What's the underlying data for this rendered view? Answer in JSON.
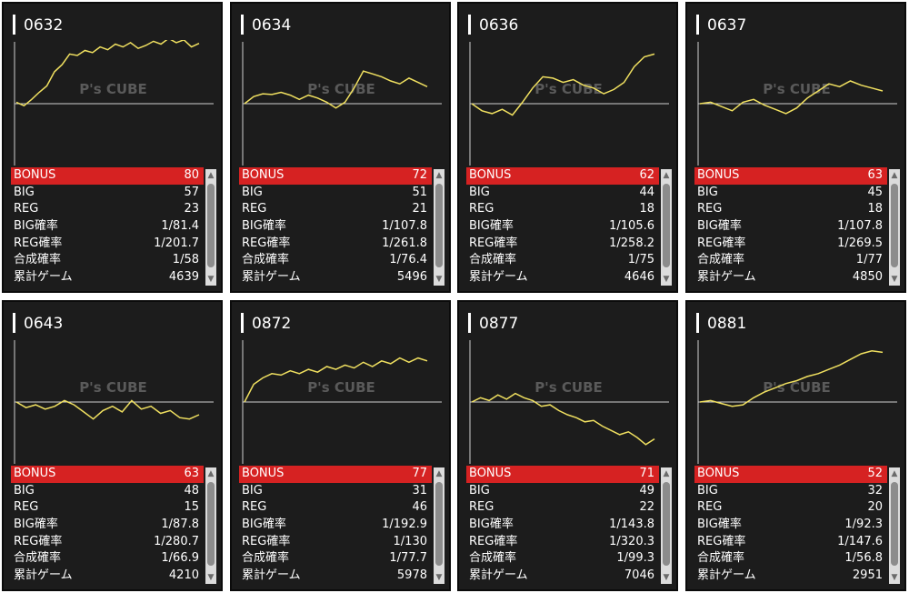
{
  "colors": {
    "card_bg": "#1c1c1c",
    "bonus_bg": "#d62222",
    "graph_line": "#f0e060",
    "baseline": "#d0d0d0"
  },
  "watermark": "P's CUBE",
  "cards": [
    {
      "id": "0632",
      "stats": [
        {
          "label": "BONUS",
          "value": "80"
        },
        {
          "label": "BIG",
          "value": "57"
        },
        {
          "label": "REG",
          "value": "23"
        },
        {
          "label": "BIG確率",
          "value": "1/81.4"
        },
        {
          "label": "REG確率",
          "value": "1/201.7"
        },
        {
          "label": "合成確率",
          "value": "1/58"
        },
        {
          "label": "累計ゲーム",
          "value": "4639"
        }
      ],
      "graph": [
        0.02,
        -0.03,
        0.06,
        0.16,
        0.25,
        0.45,
        0.55,
        0.7,
        0.68,
        0.75,
        0.72,
        0.8,
        0.76,
        0.84,
        0.8,
        0.86,
        0.78,
        0.82,
        0.88,
        0.84,
        0.92,
        0.86,
        0.9,
        0.8,
        0.85
      ]
    },
    {
      "id": "0634",
      "stats": [
        {
          "label": "BONUS",
          "value": "72"
        },
        {
          "label": "BIG",
          "value": "51"
        },
        {
          "label": "REG",
          "value": "21"
        },
        {
          "label": "BIG確率",
          "value": "1/107.8"
        },
        {
          "label": "REG確率",
          "value": "1/261.8"
        },
        {
          "label": "合成確率",
          "value": "1/76.4"
        },
        {
          "label": "累計ゲーム",
          "value": "5496"
        }
      ],
      "graph": [
        0,
        0.1,
        0.14,
        0.13,
        0.16,
        0.12,
        0.06,
        0.12,
        0.08,
        0.02,
        -0.06,
        0.02,
        0.22,
        0.46,
        0.42,
        0.38,
        0.32,
        0.28,
        0.36,
        0.3,
        0.24
      ]
    },
    {
      "id": "0636",
      "stats": [
        {
          "label": "BONUS",
          "value": "62"
        },
        {
          "label": "BIG",
          "value": "44"
        },
        {
          "label": "REG",
          "value": "18"
        },
        {
          "label": "BIG確率",
          "value": "1/105.6"
        },
        {
          "label": "REG確率",
          "value": "1/258.2"
        },
        {
          "label": "合成確率",
          "value": "1/75"
        },
        {
          "label": "累計ゲーム",
          "value": "4646"
        }
      ],
      "graph": [
        0,
        -0.1,
        -0.14,
        -0.08,
        -0.16,
        0.02,
        0.22,
        0.38,
        0.36,
        0.3,
        0.34,
        0.26,
        0.22,
        0.14,
        0.2,
        0.3,
        0.52,
        0.66,
        0.7
      ]
    },
    {
      "id": "0637",
      "stats": [
        {
          "label": "BONUS",
          "value": "63"
        },
        {
          "label": "BIG",
          "value": "45"
        },
        {
          "label": "REG",
          "value": "18"
        },
        {
          "label": "BIG確率",
          "value": "1/107.8"
        },
        {
          "label": "REG確率",
          "value": "1/269.5"
        },
        {
          "label": "合成確率",
          "value": "1/77"
        },
        {
          "label": "累計ゲーム",
          "value": "4850"
        }
      ],
      "graph": [
        0,
        0.02,
        -0.04,
        -0.1,
        0.02,
        0.06,
        -0.02,
        -0.08,
        -0.14,
        -0.06,
        0.08,
        0.18,
        0.28,
        0.24,
        0.32,
        0.26,
        0.22,
        0.18
      ]
    },
    {
      "id": "0643",
      "stats": [
        {
          "label": "BONUS",
          "value": "63"
        },
        {
          "label": "BIG",
          "value": "48"
        },
        {
          "label": "REG",
          "value": "15"
        },
        {
          "label": "BIG確率",
          "value": "1/87.8"
        },
        {
          "label": "REG確率",
          "value": "1/280.7"
        },
        {
          "label": "合成確率",
          "value": "1/66.9"
        },
        {
          "label": "累計ゲーム",
          "value": "4210"
        }
      ],
      "graph": [
        0,
        -0.08,
        -0.04,
        -0.1,
        -0.06,
        0.02,
        -0.04,
        -0.14,
        -0.24,
        -0.12,
        -0.06,
        -0.14,
        0.02,
        -0.1,
        -0.06,
        -0.16,
        -0.12,
        -0.22,
        -0.24,
        -0.18
      ]
    },
    {
      "id": "0872",
      "stats": [
        {
          "label": "BONUS",
          "value": "77"
        },
        {
          "label": "BIG",
          "value": "31"
        },
        {
          "label": "REG",
          "value": "46"
        },
        {
          "label": "BIG確率",
          "value": "1/192.9"
        },
        {
          "label": "REG確率",
          "value": "1/130"
        },
        {
          "label": "合成確率",
          "value": "1/77.7"
        },
        {
          "label": "累計ゲーム",
          "value": "5978"
        }
      ],
      "graph": [
        0,
        0.25,
        0.34,
        0.4,
        0.38,
        0.44,
        0.4,
        0.46,
        0.42,
        0.5,
        0.46,
        0.52,
        0.48,
        0.56,
        0.5,
        0.58,
        0.54,
        0.62,
        0.56,
        0.62,
        0.58
      ]
    },
    {
      "id": "0877",
      "stats": [
        {
          "label": "BONUS",
          "value": "71"
        },
        {
          "label": "BIG",
          "value": "49"
        },
        {
          "label": "REG",
          "value": "22"
        },
        {
          "label": "BIG確率",
          "value": "1/143.8"
        },
        {
          "label": "REG確率",
          "value": "1/320.3"
        },
        {
          "label": "合成確率",
          "value": "1/99.3"
        },
        {
          "label": "累計ゲーム",
          "value": "7046"
        }
      ],
      "graph": [
        0,
        0.06,
        0.02,
        0.1,
        0.04,
        0.12,
        0.06,
        0.02,
        -0.06,
        -0.04,
        -0.12,
        -0.18,
        -0.22,
        -0.28,
        -0.26,
        -0.34,
        -0.4,
        -0.46,
        -0.42,
        -0.5,
        -0.6,
        -0.52
      ]
    },
    {
      "id": "0881",
      "stats": [
        {
          "label": "BONUS",
          "value": "52"
        },
        {
          "label": "BIG",
          "value": "32"
        },
        {
          "label": "REG",
          "value": "20"
        },
        {
          "label": "BIG確率",
          "value": "1/92.3"
        },
        {
          "label": "REG確率",
          "value": "1/147.6"
        },
        {
          "label": "合成確率",
          "value": "1/56.8"
        },
        {
          "label": "累計ゲーム",
          "value": "2951"
        }
      ],
      "graph": [
        0,
        0.02,
        -0.02,
        -0.06,
        -0.04,
        0.06,
        0.14,
        0.2,
        0.26,
        0.3,
        0.36,
        0.4,
        0.46,
        0.52,
        0.6,
        0.68,
        0.72,
        0.7
      ]
    }
  ]
}
